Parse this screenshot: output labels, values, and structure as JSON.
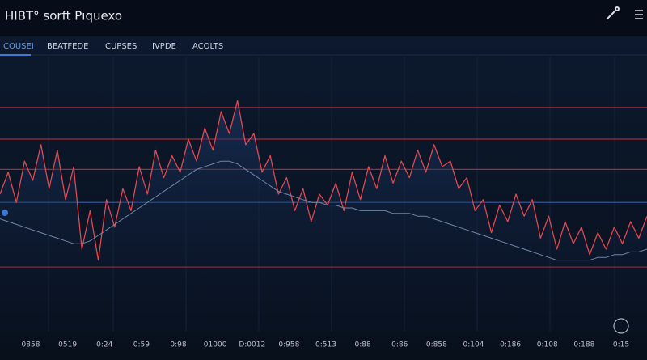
{
  "chart_data": {
    "type": "line",
    "title": "HIBT° sorft Pıquexo",
    "tabs": [
      "COUSEI",
      "BEATFEDE",
      "CUPSES",
      "IVPDE",
      "ACOLTS"
    ],
    "time_labels": [
      "0858",
      "0519",
      "0:24",
      "0:59",
      "0:98",
      "01000",
      "D:0012",
      "0:958",
      "0:513",
      "0:88",
      "0:86",
      "0:858",
      "0:104",
      "0:186",
      "0:108",
      "0:188",
      "0:15"
    ],
    "xlim": [
      0,
      79
    ],
    "ylim": [
      0,
      100
    ],
    "levels": [
      81.5,
      70,
      59,
      47,
      23.5
    ],
    "level_colors": [
      "#b8333d",
      "#b8333d",
      "#b8333d",
      "#3d6fb8",
      "#b8333d"
    ],
    "series": [
      {
        "color": "#e0474f",
        "values": [
          50,
          58,
          47,
          62,
          55,
          68,
          52,
          66,
          48,
          60,
          30,
          44,
          26,
          48,
          38,
          52,
          44,
          60,
          50,
          66,
          56,
          64,
          58,
          70,
          62,
          74,
          66,
          80,
          72,
          84,
          68,
          72,
          58,
          64,
          50,
          56,
          44,
          52,
          40,
          50,
          46,
          54,
          44,
          58,
          48,
          60,
          52,
          64,
          54,
          62,
          56,
          66,
          58,
          68,
          60,
          62,
          52,
          56,
          44,
          48,
          36,
          46,
          40,
          50,
          42,
          48,
          34,
          42,
          30,
          40,
          32,
          38,
          28,
          36,
          30,
          38,
          32,
          40,
          34,
          42
        ]
      },
      {
        "color": "#6f86a6",
        "values": [
          41,
          40,
          39,
          38,
          37,
          36,
          35,
          34,
          33,
          32,
          32,
          33,
          35,
          37,
          39,
          41,
          43,
          45,
          47,
          49,
          51,
          53,
          55,
          57,
          59,
          60,
          61,
          62,
          62,
          61,
          59,
          57,
          55,
          53,
          51,
          50,
          49,
          48,
          47,
          47,
          46,
          46,
          45,
          45,
          44,
          44,
          44,
          44,
          43,
          43,
          43,
          42,
          42,
          41,
          40,
          39,
          38,
          37,
          36,
          35,
          34,
          33,
          32,
          31,
          30,
          29,
          28,
          27,
          26,
          26,
          26,
          26,
          26,
          27,
          27,
          28,
          28,
          29,
          29,
          30
        ]
      }
    ]
  }
}
